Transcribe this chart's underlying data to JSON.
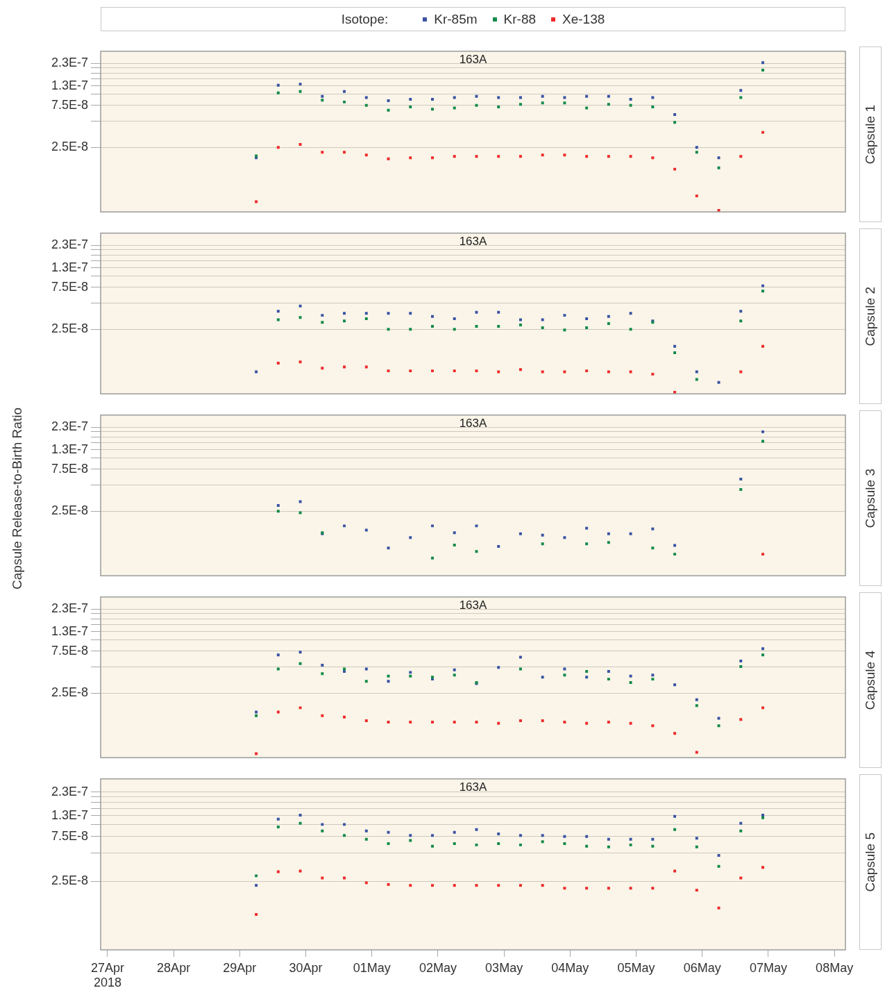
{
  "chart_data": [
    {
      "type": "scatter",
      "title": "163A",
      "y2label": "Capsule 1",
      "legend": "top",
      "legend_title": "Isotope:",
      "marker": "square",
      "log": "y",
      "grid": "y",
      "tick_labels": "y",
      "x": [
        "2018-04-29T06:00",
        "2018-04-29T14:00",
        "2018-04-29T22:00",
        "2018-04-30T06:00",
        "2018-04-30T14:00",
        "2018-04-30T22:00",
        "2018-05-01T06:00",
        "2018-05-01T14:00",
        "2018-05-01T22:00",
        "2018-05-02T06:00",
        "2018-05-02T14:00",
        "2018-05-02T22:00",
        "2018-05-03T06:00",
        "2018-05-03T14:00",
        "2018-05-03T22:00",
        "2018-05-04T06:00",
        "2018-05-04T14:00",
        "2018-05-04T22:00",
        "2018-05-05T06:00",
        "2018-05-05T14:00",
        "2018-05-05T22:00",
        "2018-05-06T06:00",
        "2018-05-06T14:00",
        "2018-05-06T22:00"
      ],
      "xlim": [
        "2018-04-26T21:30",
        "2018-05-08T04:00"
      ],
      "ylim": [
        4.6e-09,
        3.1e-07
      ],
      "yticks": [
        {
          "value": 2.5e-08,
          "label": "2.5E-8"
        },
        {
          "value": 5e-08,
          "label": null
        },
        {
          "value": 7.5e-08,
          "label": "7.5E-8"
        },
        {
          "value": 1e-07,
          "label": null
        },
        {
          "value": 1.25e-07,
          "label": "1.3E-7"
        },
        {
          "value": 1.5e-07,
          "label": null
        },
        {
          "value": 1.75e-07,
          "label": null
        },
        {
          "value": 2e-07,
          "label": null
        },
        {
          "value": 2.25e-07,
          "label": "2.3E-7"
        }
      ],
      "series": [
        {
          "name": "Kr-85m",
          "color": "#3a53a4",
          "values": [
            1.9e-08,
            1.27e-07,
            1.31e-07,
            9.5e-08,
            1.08e-07,
            9.2e-08,
            8.5e-08,
            8.8e-08,
            8.8e-08,
            9.2e-08,
            9.5e-08,
            9.2e-08,
            9.2e-08,
            9.5e-08,
            9.2e-08,
            9.5e-08,
            9.5e-08,
            8.8e-08,
            9.2e-08,
            5.9e-08,
            2.5e-08,
            1.9e-08,
            1.11e-07,
            2.3e-07
          ]
        },
        {
          "name": "Kr-88",
          "color": "#138a4a",
          "values": [
            2e-08,
            1.04e-07,
            1.08e-07,
            8.6e-08,
            8.2e-08,
            7.5e-08,
            6.6e-08,
            7.2e-08,
            6.8e-08,
            7e-08,
            7.5e-08,
            7.2e-08,
            7.7e-08,
            8e-08,
            8e-08,
            7e-08,
            7.7e-08,
            7.5e-08,
            7.2e-08,
            4.8e-08,
            2.2e-08,
            1.46e-08,
            9.2e-08,
            1.89e-07
          ]
        },
        {
          "name": "Xe-138",
          "color": "#ee2a2a",
          "values": [
            6e-09,
            2.5e-08,
            2.7e-08,
            2.2e-08,
            2.2e-08,
            2.04e-08,
            1.85e-08,
            1.9e-08,
            1.9e-08,
            1.97e-08,
            1.97e-08,
            1.97e-08,
            1.97e-08,
            2.04e-08,
            2.04e-08,
            1.97e-08,
            1.97e-08,
            1.97e-08,
            1.9e-08,
            1.41e-08,
            7e-09,
            4.8e-09,
            1.97e-08,
            3.7e-08
          ]
        }
      ]
    },
    {
      "type": "scatter",
      "title": "163A",
      "y2label": "Capsule 2",
      "marker": "square",
      "log": "y",
      "grid": "y",
      "tick_labels": "y",
      "x": [
        "2018-04-29T06:00",
        "2018-04-29T14:00",
        "2018-04-29T22:00",
        "2018-04-30T06:00",
        "2018-04-30T14:00",
        "2018-04-30T22:00",
        "2018-05-01T06:00",
        "2018-05-01T14:00",
        "2018-05-01T22:00",
        "2018-05-02T06:00",
        "2018-05-02T14:00",
        "2018-05-02T22:00",
        "2018-05-03T06:00",
        "2018-05-03T14:00",
        "2018-05-03T22:00",
        "2018-05-04T06:00",
        "2018-05-04T14:00",
        "2018-05-04T22:00",
        "2018-05-05T06:00",
        "2018-05-05T14:00",
        "2018-05-05T22:00",
        "2018-05-06T06:00",
        "2018-05-06T14:00",
        "2018-05-06T22:00"
      ],
      "xlim": [
        "2018-04-26T21:30",
        "2018-05-08T04:00"
      ],
      "ylim": [
        4.6e-09,
        3.1e-07
      ],
      "yticks": [
        {
          "value": 2.5e-08,
          "label": "2.5E-8"
        },
        {
          "value": 5e-08,
          "label": null
        },
        {
          "value": 7.5e-08,
          "label": "7.5E-8"
        },
        {
          "value": 1e-07,
          "label": null
        },
        {
          "value": 1.25e-07,
          "label": "1.3E-7"
        },
        {
          "value": 1.5e-07,
          "label": null
        },
        {
          "value": 1.75e-07,
          "label": null
        },
        {
          "value": 2e-07,
          "label": null
        },
        {
          "value": 2.25e-07,
          "label": "2.3E-7"
        }
      ],
      "series": [
        {
          "color": "#3a53a4",
          "values": [
            8.2e-09,
            4e-08,
            4.6e-08,
            3.6e-08,
            3.8e-08,
            3.8e-08,
            3.8e-08,
            3.8e-08,
            3.5e-08,
            3.3e-08,
            3.9e-08,
            3.9e-08,
            3.2e-08,
            3.2e-08,
            3.6e-08,
            3.3e-08,
            3.5e-08,
            3.8e-08,
            3.1e-08,
            1.6e-08,
            8.2e-09,
            6.2e-09,
            4e-08,
            7.8e-08
          ]
        },
        {
          "color": "#138a4a",
          "values": [
            null,
            3.2e-08,
            3.4e-08,
            3e-08,
            3.1e-08,
            3.3e-08,
            2.5e-08,
            2.5e-08,
            2.7e-08,
            2.5e-08,
            2.7e-08,
            2.7e-08,
            2.8e-08,
            2.6e-08,
            2.45e-08,
            2.6e-08,
            2.9e-08,
            2.5e-08,
            3e-08,
            1.35e-08,
            6.7e-09,
            null,
            3.1e-08,
            6.8e-08
          ]
        },
        {
          "color": "#ee2a2a",
          "values": [
            null,
            1.03e-08,
            1.06e-08,
            9e-09,
            9.3e-09,
            9.3e-09,
            8.4e-09,
            8.4e-09,
            8.4e-09,
            8.4e-09,
            8.4e-09,
            8.2e-09,
            8.7e-09,
            8.2e-09,
            8.2e-09,
            8.4e-09,
            8.2e-09,
            8.2e-09,
            7.7e-09,
            4.8e-09,
            null,
            null,
            8.2e-09,
            1.6e-08
          ]
        }
      ]
    },
    {
      "type": "scatter",
      "title": "163A",
      "y2label": "Capsule 3",
      "ylabel": "Capsule Release-to-Birth Ratio",
      "marker": "square",
      "log": "y",
      "grid": "y",
      "tick_labels": "y",
      "x": [
        "2018-04-29T14:00",
        "2018-04-29T22:00",
        "2018-04-30T06:00",
        "2018-04-30T14:00",
        "2018-04-30T22:00",
        "2018-05-01T06:00",
        "2018-05-01T14:00",
        "2018-05-01T22:00",
        "2018-05-02T06:00",
        "2018-05-02T14:00",
        "2018-05-02T22:00",
        "2018-05-03T06:00",
        "2018-05-03T14:00",
        "2018-05-03T22:00",
        "2018-05-04T06:00",
        "2018-05-04T14:00",
        "2018-05-04T22:00",
        "2018-05-05T06:00",
        "2018-05-05T14:00",
        "2018-05-05T22:00",
        "2018-05-06T06:00",
        "2018-05-06T14:00",
        "2018-05-06T22:00"
      ],
      "xlim": [
        "2018-04-26T21:30",
        "2018-05-08T04:00"
      ],
      "ylim": [
        4.6e-09,
        3.1e-07
      ],
      "yticks": [
        {
          "value": 2.5e-08,
          "label": "2.5E-8"
        },
        {
          "value": 5e-08,
          "label": null
        },
        {
          "value": 7.5e-08,
          "label": "7.5E-8"
        },
        {
          "value": 1e-07,
          "label": null
        },
        {
          "value": 1.25e-07,
          "label": "1.3E-7"
        },
        {
          "value": 1.5e-07,
          "label": null
        },
        {
          "value": 1.75e-07,
          "label": null
        },
        {
          "value": 2e-07,
          "label": null
        },
        {
          "value": 2.25e-07,
          "label": "2.3E-7"
        }
      ],
      "series": [
        {
          "color": "#3a53a4",
          "values": [
            2.9e-08,
            3.2e-08,
            1.38e-08,
            1.7e-08,
            1.52e-08,
            9.5e-09,
            1.25e-08,
            1.7e-08,
            1.42e-08,
            1.7e-08,
            9.9e-09,
            1.38e-08,
            1.33e-08,
            1.25e-08,
            1.6e-08,
            1.38e-08,
            1.38e-08,
            1.57e-08,
            1.02e-08,
            null,
            null,
            5.8e-08,
            2e-07
          ]
        },
        {
          "color": "#138a4a",
          "values": [
            2.5e-08,
            2.4e-08,
            1.42e-08,
            null,
            null,
            null,
            null,
            7.3e-09,
            1.03e-08,
            8.7e-09,
            null,
            null,
            1.06e-08,
            null,
            1.06e-08,
            1.1e-08,
            null,
            9.5e-09,
            8.1e-09,
            null,
            null,
            4.4e-08,
            1.56e-07
          ]
        },
        {
          "color": "#ee2a2a",
          "values": [
            null,
            null,
            null,
            null,
            null,
            null,
            null,
            null,
            null,
            null,
            null,
            null,
            null,
            null,
            null,
            null,
            null,
            null,
            null,
            null,
            null,
            null,
            8.1e-09
          ]
        }
      ]
    },
    {
      "type": "scatter",
      "title": "163A",
      "y2label": "Capsule 4",
      "marker": "square",
      "log": "y",
      "grid": "y",
      "tick_labels": "y",
      "x": [
        "2018-04-29T06:00",
        "2018-04-29T14:00",
        "2018-04-29T22:00",
        "2018-04-30T06:00",
        "2018-04-30T14:00",
        "2018-04-30T22:00",
        "2018-05-01T06:00",
        "2018-05-01T14:00",
        "2018-05-01T22:00",
        "2018-05-02T06:00",
        "2018-05-02T14:00",
        "2018-05-02T22:00",
        "2018-05-03T06:00",
        "2018-05-03T14:00",
        "2018-05-03T22:00",
        "2018-05-04T06:00",
        "2018-05-04T14:00",
        "2018-05-04T22:00",
        "2018-05-05T06:00",
        "2018-05-05T14:00",
        "2018-05-05T22:00",
        "2018-05-06T06:00",
        "2018-05-06T14:00",
        "2018-05-06T22:00"
      ],
      "xlim": [
        "2018-04-26T21:30",
        "2018-05-08T04:00"
      ],
      "ylim": [
        4.6e-09,
        3.1e-07
      ],
      "yticks": [
        {
          "value": 2.5e-08,
          "label": "2.5E-8"
        },
        {
          "value": 5e-08,
          "label": null
        },
        {
          "value": 7.5e-08,
          "label": "7.5E-8"
        },
        {
          "value": 1e-07,
          "label": null
        },
        {
          "value": 1.25e-07,
          "label": "1.3E-7"
        },
        {
          "value": 1.5e-07,
          "label": null
        },
        {
          "value": 1.75e-07,
          "label": null
        },
        {
          "value": 2e-07,
          "label": null
        },
        {
          "value": 2.25e-07,
          "label": "2.3E-7"
        }
      ],
      "series": [
        {
          "color": "#3a53a4",
          "values": [
            1.52e-08,
            6.8e-08,
            7.3e-08,
            5.2e-08,
            4.4e-08,
            4.7e-08,
            3.4e-08,
            4.3e-08,
            3.6e-08,
            4.6e-08,
            3.2e-08,
            4.9e-08,
            6.4e-08,
            3.8e-08,
            4.7e-08,
            3.8e-08,
            4.4e-08,
            3.9e-08,
            4e-08,
            3.1e-08,
            2.1e-08,
            1.29e-08,
            5.8e-08,
            8e-08
          ]
        },
        {
          "color": "#138a4a",
          "values": [
            1.38e-08,
            4.7e-08,
            5.4e-08,
            4.15e-08,
            4.7e-08,
            3.4e-08,
            3.9e-08,
            3.9e-08,
            3.8e-08,
            4e-08,
            3.3e-08,
            null,
            4.7e-08,
            null,
            4e-08,
            4.4e-08,
            3.6e-08,
            3.3e-08,
            3.6e-08,
            null,
            1.8e-08,
            1.06e-08,
            5e-08,
            6.8e-08
          ]
        },
        {
          "color": "#ee2a2a",
          "values": [
            5.1e-09,
            1.52e-08,
            1.7e-08,
            1.38e-08,
            1.33e-08,
            1.21e-08,
            1.17e-08,
            1.17e-08,
            1.17e-08,
            1.17e-08,
            1.17e-08,
            1.13e-08,
            1.21e-08,
            1.21e-08,
            1.17e-08,
            1.13e-08,
            1.17e-08,
            1.13e-08,
            1.06e-08,
            8.7e-09,
            5.3e-09,
            null,
            1.25e-08,
            1.7e-08
          ]
        }
      ]
    },
    {
      "type": "scatter",
      "title": "163A",
      "y2label": "Capsule 5",
      "marker": "square",
      "log": "y",
      "grid": "y",
      "x": [
        "2018-04-29T06:00",
        "2018-04-29T14:00",
        "2018-04-29T22:00",
        "2018-04-30T06:00",
        "2018-04-30T14:00",
        "2018-04-30T22:00",
        "2018-05-01T06:00",
        "2018-05-01T14:00",
        "2018-05-01T22:00",
        "2018-05-02T06:00",
        "2018-05-02T14:00",
        "2018-05-02T22:00",
        "2018-05-03T06:00",
        "2018-05-03T14:00",
        "2018-05-03T22:00",
        "2018-05-04T06:00",
        "2018-05-04T14:00",
        "2018-05-04T22:00",
        "2018-05-05T06:00",
        "2018-05-05T14:00",
        "2018-05-05T22:00",
        "2018-05-06T06:00",
        "2018-05-06T14:00",
        "2018-05-06T22:00"
      ],
      "xlim": [
        "2018-04-26T21:30",
        "2018-05-08T04:00"
      ],
      "ylim": [
        4.6e-09,
        3.1e-07
      ],
      "xticks": [
        {
          "value": "2018-04-27",
          "label": "27Apr\n2018"
        },
        {
          "value": "2018-04-28",
          "label": "28Apr"
        },
        {
          "value": "2018-04-29",
          "label": "29Apr"
        },
        {
          "value": "2018-04-30",
          "label": "30Apr"
        },
        {
          "value": "2018-05-01",
          "label": "01May"
        },
        {
          "value": "2018-05-02",
          "label": "02May"
        },
        {
          "value": "2018-05-03",
          "label": "03May"
        },
        {
          "value": "2018-05-04",
          "label": "04May"
        },
        {
          "value": "2018-05-05",
          "label": "05May"
        },
        {
          "value": "2018-05-06",
          "label": "06May"
        },
        {
          "value": "2018-05-07",
          "label": "07May"
        },
        {
          "value": "2018-05-08",
          "label": "08May"
        }
      ],
      "yticks": [
        {
          "value": 2.5e-08,
          "label": "2.5E-8"
        },
        {
          "value": 5e-08,
          "label": null
        },
        {
          "value": 7.5e-08,
          "label": "7.5E-8"
        },
        {
          "value": 1e-07,
          "label": null
        },
        {
          "value": 1.25e-07,
          "label": "1.3E-7"
        },
        {
          "value": 1.5e-07,
          "label": null
        },
        {
          "value": 1.75e-07,
          "label": null
        },
        {
          "value": 2e-07,
          "label": null
        },
        {
          "value": 2.25e-07,
          "label": "2.3E-7"
        }
      ],
      "series": [
        {
          "color": "#3a53a4",
          "values": [
            2.25e-08,
            1.15e-07,
            1.27e-07,
            1.01e-07,
            1.01e-07,
            8.6e-08,
            8.3e-08,
            7.7e-08,
            7.7e-08,
            8.3e-08,
            8.9e-08,
            8e-08,
            7.7e-08,
            7.7e-08,
            7.5e-08,
            7.5e-08,
            7e-08,
            7e-08,
            7e-08,
            1.23e-07,
            7.2e-08,
            4.7e-08,
            1.04e-07,
            1.27e-07
          ]
        },
        {
          "color": "#138a4a",
          "values": [
            2.85e-08,
            9.5e-08,
            1.04e-07,
            8.6e-08,
            7.7e-08,
            7e-08,
            6.3e-08,
            6.8e-08,
            5.9e-08,
            6.3e-08,
            6.1e-08,
            6.3e-08,
            6.1e-08,
            6.6e-08,
            6.3e-08,
            5.9e-08,
            5.8e-08,
            6.1e-08,
            5.9e-08,
            8.9e-08,
            5.8e-08,
            3.6e-08,
            8.6e-08,
            1.19e-07
          ]
        },
        {
          "color": "#ee2a2a",
          "values": [
            1.1e-08,
            3.15e-08,
            3.2e-08,
            2.7e-08,
            2.7e-08,
            2.4e-08,
            2.3e-08,
            2.25e-08,
            2.25e-08,
            2.25e-08,
            2.25e-08,
            2.25e-08,
            2.25e-08,
            2.25e-08,
            2.1e-08,
            2.1e-08,
            2.1e-08,
            2.1e-08,
            2.1e-08,
            3.2e-08,
            2e-08,
            1.29e-08,
            2.7e-08,
            3.5e-08
          ]
        }
      ]
    }
  ]
}
